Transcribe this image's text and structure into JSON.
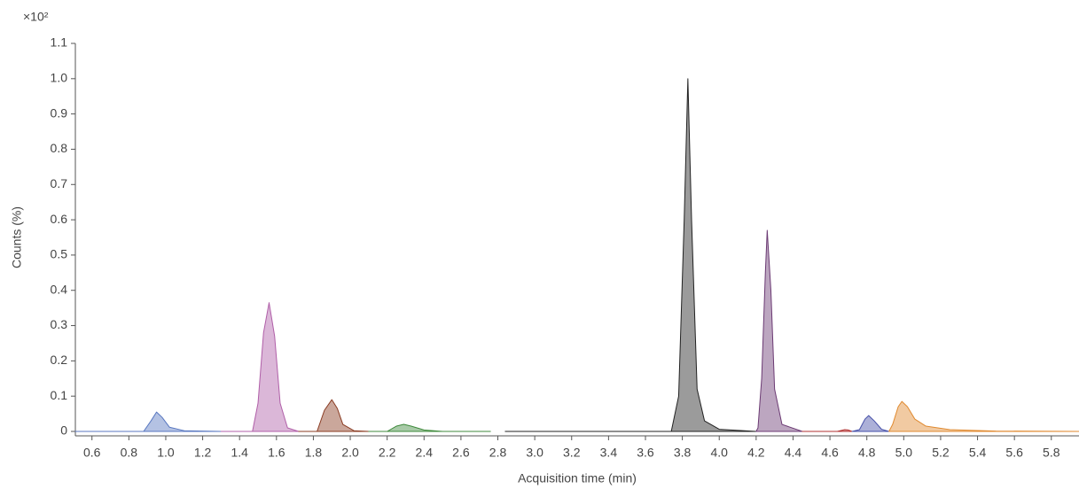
{
  "chart_data": {
    "type": "area",
    "y_multiplier": "×10²",
    "xlabel": "Acquisition time (min)",
    "ylabel": "Counts (%)",
    "xlim": [
      0.51,
      5.95
    ],
    "ylim": [
      0,
      1.1
    ],
    "xticks": [
      0.6,
      0.8,
      {
        "value": 1.0,
        "label": "1.0"
      },
      1.2,
      1.4,
      1.6,
      1.8,
      {
        "value": 2.0,
        "label": "2.0"
      },
      2.2,
      2.4,
      2.6,
      2.8,
      {
        "value": 3.0,
        "label": "3.0"
      },
      3.2,
      3.4,
      3.6,
      3.8,
      {
        "value": 4.0,
        "label": "4.0"
      },
      4.2,
      4.4,
      4.6,
      4.8,
      {
        "value": 5.0,
        "label": "5.0"
      },
      5.2,
      5.4,
      5.6,
      5.8
    ],
    "yticks": [
      0,
      0.1,
      0.2,
      0.3,
      0.4,
      0.5,
      0.6,
      0.7,
      0.8,
      0.9,
      {
        "value": 1.0,
        "label": "1.0"
      },
      1.1
    ],
    "fill_opacity": 0.45,
    "series": [
      {
        "color": "#5877c0",
        "x": [
          0.51,
          0.88,
          0.92,
          0.95,
          0.98,
          1.02,
          1.1,
          1.3
        ],
        "values": [
          0,
          0,
          0.03,
          0.055,
          0.04,
          0.012,
          0.002,
          0
        ]
      },
      {
        "color": "#b05fa8",
        "x": [
          1.3,
          1.47,
          1.5,
          1.53,
          1.56,
          1.59,
          1.62,
          1.66,
          1.72
        ],
        "values": [
          0,
          0,
          0.08,
          0.28,
          0.365,
          0.27,
          0.08,
          0.01,
          0
        ]
      },
      {
        "color": "#8a3b22",
        "x": [
          1.72,
          1.82,
          1.86,
          1.9,
          1.93,
          1.96,
          2.02,
          2.1
        ],
        "values": [
          0,
          0,
          0.06,
          0.09,
          0.065,
          0.02,
          0.002,
          0
        ]
      },
      {
        "color": "#3f8a3c",
        "x": [
          2.1,
          2.2,
          2.25,
          2.29,
          2.33,
          2.4,
          2.5,
          2.76
        ],
        "values": [
          0,
          0,
          0.015,
          0.02,
          0.015,
          0.004,
          0,
          0
        ]
      },
      {
        "color": "#222222",
        "x": [
          2.84,
          3.74,
          3.78,
          3.81,
          3.83,
          3.85,
          3.88,
          3.92,
          4.0,
          4.2
        ],
        "values": [
          0,
          0,
          0.1,
          0.6,
          1.0,
          0.6,
          0.12,
          0.03,
          0.006,
          0
        ]
      },
      {
        "color": "#6b3a73",
        "x": [
          4.2,
          4.21,
          4.23,
          4.25,
          4.26,
          4.28,
          4.3,
          4.34,
          4.45
        ],
        "values": [
          0,
          0.01,
          0.15,
          0.45,
          0.57,
          0.4,
          0.12,
          0.02,
          0
        ]
      },
      {
        "color": "#b03030",
        "x": [
          4.45,
          4.64,
          4.68,
          4.7,
          4.72
        ],
        "values": [
          0,
          0,
          0.005,
          0.004,
          0
        ]
      },
      {
        "color": "#4650a8",
        "x": [
          4.72,
          4.76,
          4.79,
          4.81,
          4.84,
          4.88,
          4.92
        ],
        "values": [
          0,
          0.005,
          0.035,
          0.045,
          0.03,
          0.006,
          0
        ]
      },
      {
        "color": "#e08a30",
        "x": [
          4.92,
          4.94,
          4.97,
          4.99,
          5.02,
          5.06,
          5.12,
          5.25,
          5.5,
          5.95
        ],
        "values": [
          0,
          0.02,
          0.07,
          0.085,
          0.07,
          0.035,
          0.015,
          0.005,
          0.001,
          0
        ]
      }
    ]
  }
}
